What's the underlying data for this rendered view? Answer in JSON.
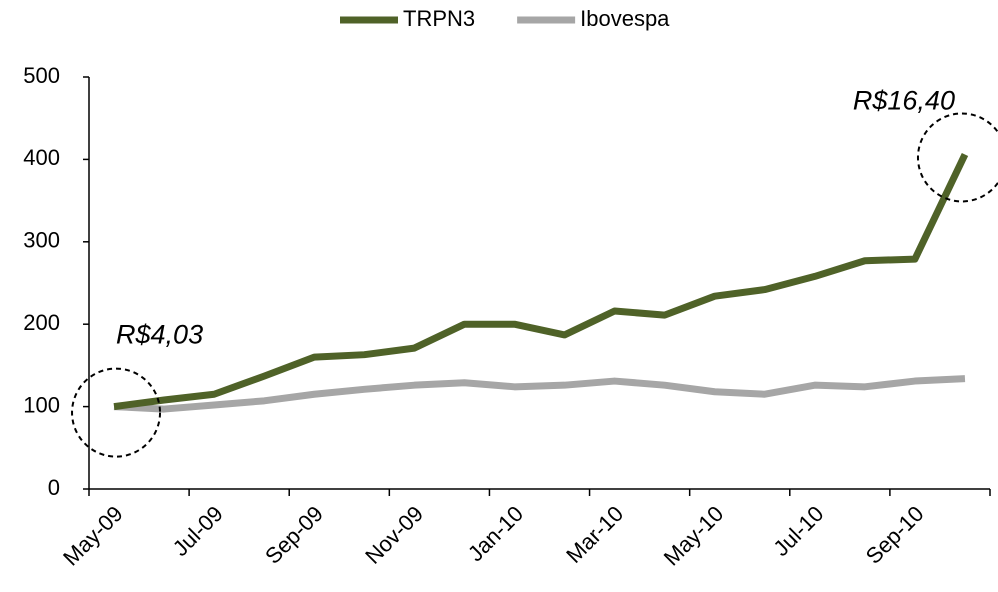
{
  "chart_data": {
    "type": "line",
    "categories": [
      "May-09",
      null,
      "Jul-09",
      null,
      "Sep-09",
      null,
      "Nov-09",
      null,
      "Jan-10",
      null,
      "Mar-10",
      null,
      "May-10",
      null,
      "Jul-10",
      null,
      "Sep-10",
      null
    ],
    "series": [
      {
        "name": "TRPN3",
        "color": "#4f6228",
        "values": [
          100,
          108,
          115,
          137,
          160,
          163,
          171,
          200,
          200,
          187,
          216,
          211,
          234,
          242,
          258,
          277,
          279,
          406
        ]
      },
      {
        "name": "Ibovespa",
        "color": "#a6a6a6",
        "values": [
          100,
          97,
          102,
          107,
          115,
          121,
          126,
          129,
          124,
          126,
          131,
          126,
          118,
          115,
          126,
          124,
          131,
          134
        ]
      }
    ],
    "ylim": [
      0,
      500
    ],
    "yticks": [
      0,
      100,
      200,
      300,
      400,
      500
    ],
    "grid": false,
    "legend": "top",
    "annotations": [
      {
        "text": "R$4,03"
      },
      {
        "text": "R$16,40"
      }
    ]
  }
}
